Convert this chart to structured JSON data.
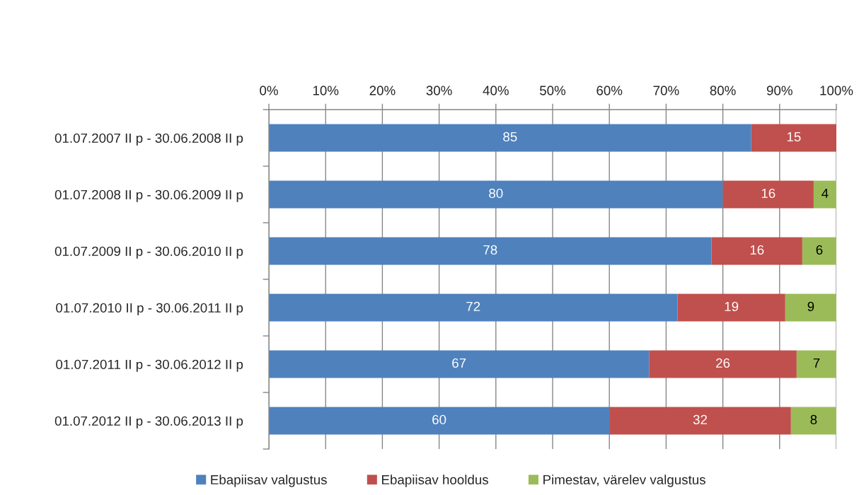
{
  "chart_data": {
    "type": "bar",
    "orientation": "horizontal",
    "stacked": true,
    "categories": [
      "01.07.2007 II p - 30.06.2008 II p",
      "01.07.2008 II p - 30.06.2009 II p",
      "01.07.2009 II p - 30.06.2010 II p",
      "01.07.2010 II p - 30.06.2011 II p",
      "01.07.2011 II p - 30.06.2012 II p",
      "01.07.2012 II p - 30.06.2013 II p"
    ],
    "series": [
      {
        "name": "Ebapiisav valgustus",
        "color": "#4f81bd",
        "values": [
          85,
          80,
          78,
          72,
          67,
          60
        ]
      },
      {
        "name": "Ebapiisav hooldus",
        "color": "#c0504d",
        "values": [
          15,
          16,
          16,
          19,
          26,
          32
        ]
      },
      {
        "name": "Pimestav, värelev valgustus",
        "color": "#9bbb59",
        "values": [
          null,
          4,
          6,
          9,
          7,
          8
        ]
      }
    ],
    "xlim": [
      0,
      100
    ],
    "xticks": [
      {
        "value": 0,
        "label": "0%"
      },
      {
        "value": 10,
        "label": "10%"
      },
      {
        "value": 20,
        "label": "20%"
      },
      {
        "value": 30,
        "label": "30%"
      },
      {
        "value": 40,
        "label": "40%"
      },
      {
        "value": 50,
        "label": "50%"
      },
      {
        "value": 60,
        "label": "60%"
      },
      {
        "value": 70,
        "label": "70%"
      },
      {
        "value": 80,
        "label": "80%"
      },
      {
        "value": 90,
        "label": "90%"
      },
      {
        "value": 100,
        "label": "100%"
      }
    ],
    "grid": "x",
    "legend": "bottom",
    "data_labels": true
  }
}
